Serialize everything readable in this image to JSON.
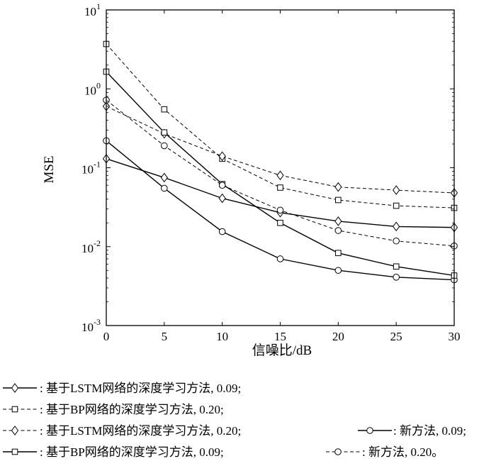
{
  "chart_data": {
    "type": "line",
    "xlabel": "信噪比/dB",
    "ylabel": "MSE",
    "yscale": "log",
    "xlim": [
      0,
      30
    ],
    "ylim": [
      0.001,
      10
    ],
    "grid": false,
    "legend_position": "bottom",
    "x": [
      0,
      5,
      10,
      15,
      20,
      25,
      30
    ],
    "xticks": [
      "0",
      "5",
      "10",
      "15",
      "20",
      "25",
      "30"
    ],
    "yticks": [
      {
        "value": 0.001,
        "base": "10",
        "exp": "-3"
      },
      {
        "value": 0.01,
        "base": "10",
        "exp": "-2"
      },
      {
        "value": 0.1,
        "base": "10",
        "exp": "-1"
      },
      {
        "value": 1,
        "base": "10",
        "exp": "0"
      },
      {
        "value": 10,
        "base": "10",
        "exp": "1"
      }
    ],
    "series": [
      {
        "key": "lstm009",
        "marker": "diamond",
        "dash": "solid",
        "values": [
          0.13,
          0.075,
          0.041,
          0.027,
          0.021,
          0.018,
          0.0175
        ]
      },
      {
        "key": "bp020",
        "marker": "square",
        "dash": "dashed",
        "values": [
          3.7,
          0.55,
          0.13,
          0.056,
          0.039,
          0.033,
          0.031
        ]
      },
      {
        "key": "lstm020",
        "marker": "diamond",
        "dash": "dashed",
        "values": [
          0.6,
          0.27,
          0.14,
          0.08,
          0.057,
          0.052,
          0.048
        ]
      },
      {
        "key": "new009",
        "marker": "circle",
        "dash": "solid",
        "values": [
          0.22,
          0.055,
          0.0155,
          0.007,
          0.005,
          0.0041,
          0.0038
        ]
      },
      {
        "key": "bp009",
        "marker": "square",
        "dash": "solid",
        "values": [
          1.65,
          0.28,
          0.062,
          0.02,
          0.0083,
          0.0056,
          0.0043
        ]
      },
      {
        "key": "new020",
        "marker": "circle",
        "dash": "dashed",
        "values": [
          0.72,
          0.19,
          0.06,
          0.029,
          0.016,
          0.0118,
          0.0102
        ]
      }
    ]
  },
  "legend": {
    "lstm009": ": 基于LSTM网络的深度学习方法, 0.09;",
    "bp020": ": 基于BP网络的深度学习方法, 0.20;",
    "lstm020": ": 基于LSTM网络的深度学习方法, 0.20;",
    "new009": ": 新方法, 0.09;",
    "bp009": ": 基于BP网络的深度学习方法, 0.09;",
    "new020": ": 新方法, 0.20。"
  }
}
